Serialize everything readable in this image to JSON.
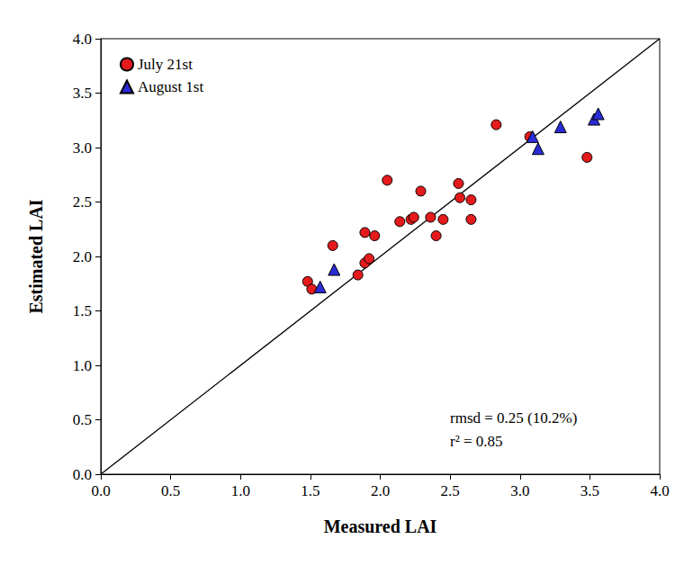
{
  "chart_data": {
    "type": "scatter",
    "x_label": "Measured LAI",
    "y_label": "Estimated LAI",
    "xlim": [
      0,
      4
    ],
    "ylim": [
      0,
      4
    ],
    "xticks": [
      {
        "value": 0,
        "label": "0.0"
      },
      0.5,
      {
        "value": 1,
        "label": "1.0"
      },
      1.5,
      {
        "value": 2,
        "label": "2.0"
      },
      2.5,
      {
        "value": 3,
        "label": "3.0"
      },
      3.5,
      {
        "value": 4,
        "label": "4.0"
      }
    ],
    "yticks": [
      {
        "value": 0,
        "label": "0.0"
      },
      0.5,
      {
        "value": 1,
        "label": "1.0"
      },
      1.5,
      {
        "value": 2,
        "label": "2.0"
      },
      2.5,
      {
        "value": 3,
        "label": "3.0"
      },
      3.5,
      {
        "value": 4,
        "label": "4.0"
      }
    ],
    "grid": false,
    "legend": "upper left",
    "annotations": [
      "rmsd = 0.25 (10.2%)",
      "r² = 0.85"
    ],
    "series": [
      {
        "name": "July 21st",
        "type": "scatter",
        "color": "#e41a1c",
        "marker": "circle",
        "x": [
          1.48,
          1.51,
          1.66,
          1.84,
          1.89,
          1.92,
          1.89,
          1.96,
          2.05,
          2.14,
          2.22,
          2.24,
          2.29,
          2.36,
          2.4,
          2.45,
          2.56,
          2.57,
          2.65,
          2.65,
          2.83,
          3.07,
          3.48
        ],
        "values": [
          1.77,
          1.7,
          2.1,
          1.83,
          1.94,
          1.98,
          2.22,
          2.19,
          2.7,
          2.32,
          2.34,
          2.36,
          2.6,
          2.36,
          2.19,
          2.34,
          2.67,
          2.54,
          2.52,
          2.34,
          3.21,
          3.1,
          2.91
        ]
      },
      {
        "name": "August 1st",
        "type": "scatter",
        "color": "#2b2bd6",
        "marker": "triangle",
        "x": [
          1.57,
          1.67,
          3.09,
          3.13,
          3.29,
          3.53,
          3.56
        ],
        "values": [
          1.72,
          1.88,
          3.1,
          2.99,
          3.19,
          3.26,
          3.31
        ]
      },
      {
        "type": "line",
        "color": "#000000",
        "line_style": "solid",
        "x": [
          0,
          4
        ],
        "values": [
          0,
          4
        ]
      }
    ]
  }
}
